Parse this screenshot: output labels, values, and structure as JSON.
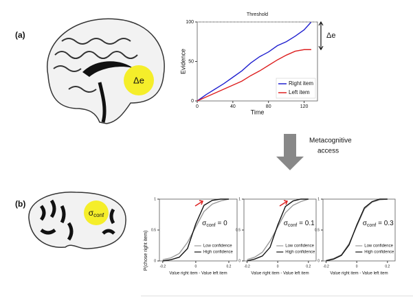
{
  "panel_labels": [
    "(a)",
    "(b)"
  ],
  "brain_a_label": "Δe",
  "brain_b_label": {
    "symbol": "σ",
    "subscript": "conf"
  },
  "arrow_label": [
    "Metacognitive",
    "access"
  ],
  "chart_data": [
    {
      "type": "line",
      "title": "Threshold",
      "xlabel": "Time",
      "ylabel": "Evidence",
      "x": [
        0,
        10,
        20,
        30,
        40,
        50,
        60,
        70,
        80,
        90,
        100,
        110,
        120,
        128
      ],
      "series": [
        {
          "name": "Right item",
          "color": "#1f1fcf",
          "values": [
            0,
            8,
            15,
            22,
            30,
            38,
            48,
            56,
            62,
            70,
            75,
            82,
            90,
            100
          ]
        },
        {
          "name": "Left item",
          "color": "#dd1f1f",
          "values": [
            0,
            5,
            10,
            15,
            20,
            25,
            32,
            38,
            45,
            52,
            58,
            63,
            65,
            65
          ]
        }
      ],
      "xlim": [
        0,
        135
      ],
      "ylim": [
        0,
        100
      ],
      "xticks": [
        0,
        40,
        80,
        120
      ],
      "yticks": [
        0,
        50,
        100
      ],
      "threshold": 100,
      "difference_label": "Δe",
      "legend": "lower right"
    },
    {
      "type": "psychometric",
      "xlabel": "Value right item - Value left item",
      "ylabel": "P(chose right item)",
      "annotation": {
        "symbol": "σ",
        "subscript": "conf",
        "text": "= 0"
      },
      "x": [
        -0.2,
        -0.15,
        -0.1,
        -0.05,
        0,
        0.05,
        0.1,
        0.15,
        0.2
      ],
      "series": [
        {
          "name": "Low confidence",
          "color": "#999999",
          "values": [
            0.02,
            0.05,
            0.12,
            0.3,
            0.55,
            0.8,
            0.92,
            0.97,
            1
          ]
        },
        {
          "name": "High confidence",
          "color": "#111111",
          "values": [
            0,
            0.02,
            0.06,
            0.2,
            0.6,
            0.9,
            0.98,
            1,
            1
          ]
        }
      ],
      "xlim": [
        -0.22,
        0.25
      ],
      "ylim": [
        0,
        1
      ],
      "xticks": [
        -0.2,
        0,
        0.2
      ],
      "yticks": [
        0,
        0.5,
        1
      ]
    },
    {
      "type": "psychometric",
      "xlabel": "Value right item - Value left item",
      "annotation": {
        "symbol": "σ",
        "subscript": "conf",
        "text": "= 0.1"
      },
      "x": [
        -0.2,
        -0.15,
        -0.1,
        -0.05,
        0,
        0.05,
        0.1,
        0.15,
        0.2
      ],
      "series": [
        {
          "name": "Low confidence",
          "color": "#999999",
          "values": [
            0.02,
            0.06,
            0.14,
            0.32,
            0.55,
            0.78,
            0.9,
            0.96,
            1
          ]
        },
        {
          "name": "High confidence",
          "color": "#111111",
          "values": [
            0,
            0.03,
            0.08,
            0.22,
            0.58,
            0.88,
            0.97,
            1,
            1
          ]
        }
      ],
      "xlim": [
        -0.22,
        0.25
      ],
      "ylim": [
        0,
        1
      ],
      "xticks": [
        -0.2,
        0,
        0.2
      ],
      "yticks": [
        0,
        0.5,
        1
      ]
    },
    {
      "type": "psychometric",
      "xlabel": "Value right item - Value left item",
      "annotation": {
        "symbol": "σ",
        "subscript": "conf",
        "text": "= 0.3"
      },
      "x": [
        -0.2,
        -0.15,
        -0.1,
        -0.05,
        0,
        0.05,
        0.1,
        0.15,
        0.2
      ],
      "series": [
        {
          "name": "Low confidence",
          "color": "#999999",
          "values": [
            0.01,
            0.04,
            0.1,
            0.28,
            0.56,
            0.84,
            0.95,
            0.99,
            1
          ]
        },
        {
          "name": "High confidence",
          "color": "#111111",
          "values": [
            0,
            0.03,
            0.09,
            0.26,
            0.58,
            0.86,
            0.96,
            1,
            1
          ]
        }
      ],
      "xlim": [
        -0.22,
        0.25
      ],
      "ylim": [
        0,
        1
      ],
      "xticks": [
        -0.2,
        0,
        0.2
      ],
      "yticks": [
        0,
        0.5,
        1
      ]
    }
  ]
}
